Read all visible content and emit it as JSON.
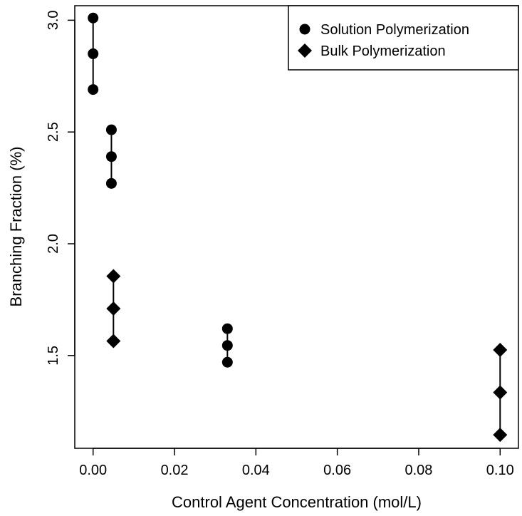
{
  "chart_data": {
    "type": "scatter",
    "xlabel": "Control Agent Concentration (mol/L)",
    "ylabel": "Branching Fraction (%)",
    "xlim": [
      -0.0045,
      0.1045
    ],
    "ylim": [
      1.085,
      3.065
    ],
    "x_ticks": [
      0.0,
      0.02,
      0.04,
      0.06,
      0.08,
      0.1
    ],
    "x_tick_labels": [
      "0.00",
      "0.02",
      "0.04",
      "0.06",
      "0.08",
      "0.10"
    ],
    "y_ticks": [
      1.5,
      2.0,
      2.5,
      3.0
    ],
    "y_tick_labels": [
      "1.5",
      "2.0",
      "2.5",
      "3.0"
    ],
    "grid": false,
    "legend_position": "top-right",
    "series": [
      {
        "name": "Solution Polymerization",
        "marker": "circle",
        "color": "#000000",
        "points": [
          {
            "x": 0.0,
            "low": 2.69,
            "mid": 2.85,
            "high": 3.01
          },
          {
            "x": 0.0045,
            "low": 2.27,
            "mid": 2.39,
            "high": 2.51
          },
          {
            "x": 0.033,
            "low": 1.47,
            "mid": 1.545,
            "high": 1.62
          }
        ]
      },
      {
        "name": "Bulk Polymerization",
        "marker": "diamond",
        "color": "#000000",
        "points": [
          {
            "x": 0.005,
            "low": 1.565,
            "mid": 1.71,
            "high": 1.855
          },
          {
            "x": 0.1,
            "low": 1.145,
            "mid": 1.335,
            "high": 1.525
          }
        ]
      }
    ]
  }
}
